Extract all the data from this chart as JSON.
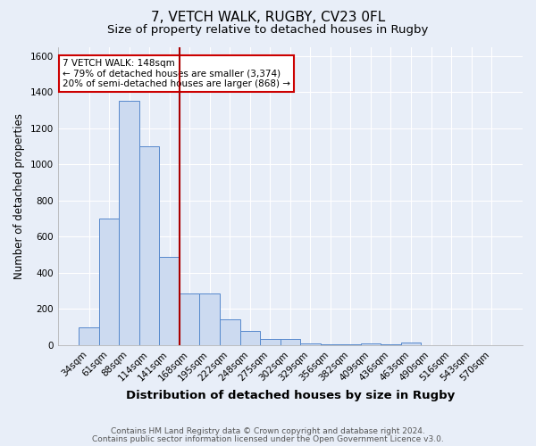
{
  "title1": "7, VETCH WALK, RUGBY, CV23 0FL",
  "title2": "Size of property relative to detached houses in Rugby",
  "xlabel": "Distribution of detached houses by size in Rugby",
  "ylabel": "Number of detached properties",
  "categories": [
    "34sqm",
    "61sqm",
    "88sqm",
    "114sqm",
    "141sqm",
    "168sqm",
    "195sqm",
    "222sqm",
    "248sqm",
    "275sqm",
    "302sqm",
    "329sqm",
    "356sqm",
    "382sqm",
    "409sqm",
    "436sqm",
    "463sqm",
    "490sqm",
    "516sqm",
    "543sqm",
    "570sqm"
  ],
  "values": [
    100,
    700,
    1350,
    1100,
    490,
    285,
    285,
    145,
    80,
    35,
    35,
    10,
    5,
    5,
    10,
    5,
    15,
    0,
    0,
    0,
    0
  ],
  "bar_color": "#ccdaf0",
  "bar_edge_color": "#5588cc",
  "vline_color": "#aa0000",
  "vline_x_idx": 4.5,
  "annotation_text": "7 VETCH WALK: 148sqm\n← 79% of detached houses are smaller (3,374)\n20% of semi-detached houses are larger (868) →",
  "annotation_box_color": "white",
  "annotation_box_edge_color": "#cc0000",
  "ylim": [
    0,
    1650
  ],
  "yticks": [
    0,
    200,
    400,
    600,
    800,
    1000,
    1200,
    1400,
    1600
  ],
  "footer1": "Contains HM Land Registry data © Crown copyright and database right 2024.",
  "footer2": "Contains public sector information licensed under the Open Government Licence v3.0.",
  "bg_color": "#e8eef8",
  "plot_bg_color": "#e8eef8",
  "grid_color": "white",
  "title1_fontsize": 11,
  "title2_fontsize": 9.5,
  "xlabel_fontsize": 9.5,
  "ylabel_fontsize": 8.5,
  "tick_fontsize": 7.5,
  "annotation_fontsize": 7.5,
  "footer_fontsize": 6.5
}
